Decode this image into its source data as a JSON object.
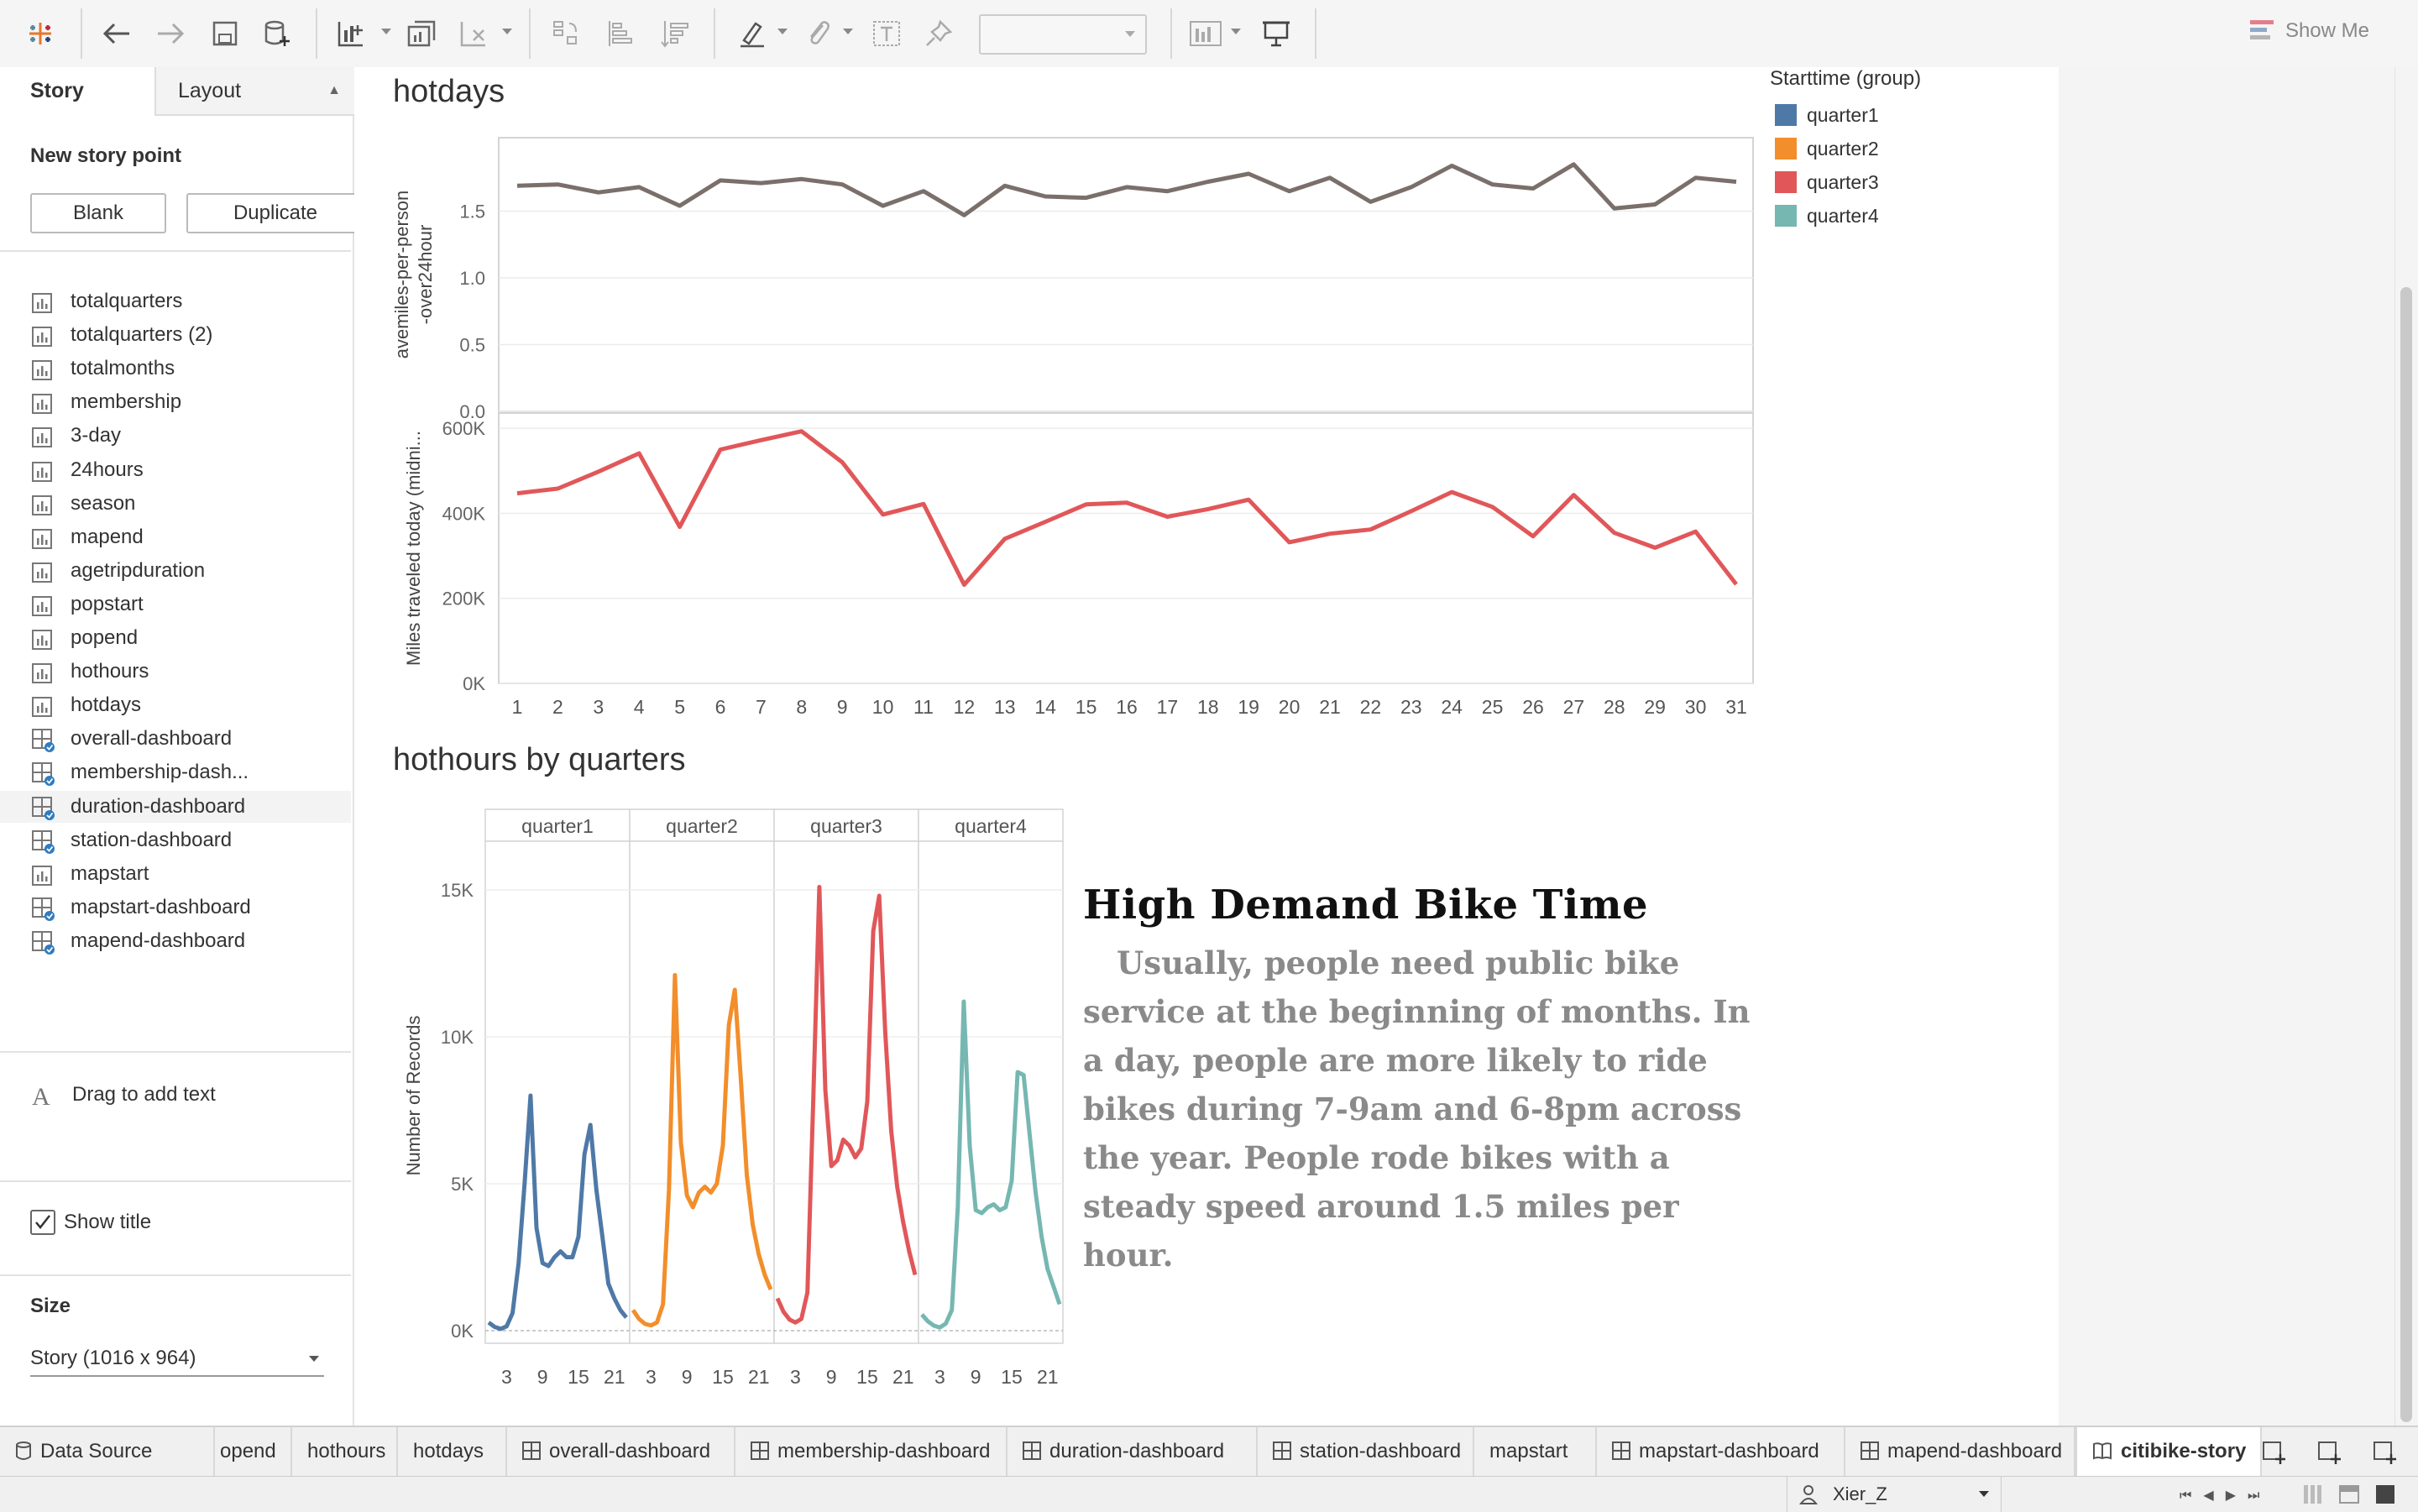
{
  "toolbar": {
    "show_me": "Show Me"
  },
  "left_pane": {
    "tab_story": "Story",
    "tab_layout": "Layout",
    "new_story_point": "New story point",
    "blank_label": "Blank",
    "duplicate_label": "Duplicate",
    "sheets": [
      {
        "label": "totalquarters",
        "icon": "worksheet-icon"
      },
      {
        "label": "totalquarters (2)",
        "icon": "worksheet-icon"
      },
      {
        "label": "totalmonths",
        "icon": "worksheet-icon"
      },
      {
        "label": "membership",
        "icon": "worksheet-icon"
      },
      {
        "label": "3-day",
        "icon": "worksheet-icon"
      },
      {
        "label": "24hours",
        "icon": "worksheet-icon"
      },
      {
        "label": "season",
        "icon": "worksheet-icon"
      },
      {
        "label": "mapend",
        "icon": "worksheet-icon"
      },
      {
        "label": "agetripduration",
        "icon": "worksheet-icon"
      },
      {
        "label": "popstart",
        "icon": "worksheet-icon"
      },
      {
        "label": "popend",
        "icon": "worksheet-icon"
      },
      {
        "label": "hothours",
        "icon": "worksheet-icon"
      },
      {
        "label": "hotdays",
        "icon": "worksheet-icon"
      },
      {
        "label": "overall-dashboard",
        "icon": "dashboard-icon"
      },
      {
        "label": "membership-dash...",
        "icon": "dashboard-icon"
      },
      {
        "label": "duration-dashboard",
        "icon": "dashboard-icon"
      },
      {
        "label": "station-dashboard",
        "icon": "dashboard-icon"
      },
      {
        "label": "mapstart",
        "icon": "worksheet-icon"
      },
      {
        "label": "mapstart-dashboard",
        "icon": "dashboard-icon"
      },
      {
        "label": "mapend-dashboard",
        "icon": "dashboard-icon"
      }
    ],
    "drag_text": "Drag to add text",
    "show_title": "Show title",
    "size_heading": "Size",
    "size_value": "Story (1016 x 964)"
  },
  "hotdays": {
    "title": "hotdays",
    "ylabel_top": "avemiles-per-person-over24hour",
    "ylabel_bottom": "Miles traveled today (midni..."
  },
  "hothours": {
    "title": "hothours by quarters",
    "ylabel": "Number of Records"
  },
  "legend": {
    "title": "Starttime (group)",
    "items": [
      {
        "label": "quarter1",
        "color": "#4e79a7"
      },
      {
        "label": "quarter2",
        "color": "#f28e2b"
      },
      {
        "label": "quarter3",
        "color": "#e15759"
      },
      {
        "label": "quarter4",
        "color": "#76b7b2"
      }
    ]
  },
  "annotation": {
    "heading": "High Demand Bike Time",
    "body": "Usually, people need public bike service at the beginning of months. In a day, people are more likely to ride bikes during 7-9am and 6-8pm across the year. People rode bikes with a steady speed around 1.5 miles per hour."
  },
  "bottom_tabs": [
    {
      "label": "Data Source"
    },
    {
      "label": "opend"
    },
    {
      "label": "hothours"
    },
    {
      "label": "hotdays"
    },
    {
      "label": "overall-dashboard"
    },
    {
      "label": "membership-dashboard"
    },
    {
      "label": "duration-dashboard"
    },
    {
      "label": "station-dashboard"
    },
    {
      "label": "mapstart"
    },
    {
      "label": "mapstart-dashboard"
    },
    {
      "label": "mapend-dashboard"
    },
    {
      "label": "citibike-story"
    }
  ],
  "status": {
    "user": "Xier_Z"
  },
  "chart_data": [
    {
      "type": "line",
      "title": "hotdays",
      "x": [
        1,
        2,
        3,
        4,
        5,
        6,
        7,
        8,
        9,
        10,
        11,
        12,
        13,
        14,
        15,
        16,
        17,
        18,
        19,
        20,
        21,
        22,
        23,
        24,
        25,
        26,
        27,
        28,
        29,
        30,
        31
      ],
      "series": [
        {
          "values": [
            1.69,
            1.7,
            1.64,
            1.68,
            1.54,
            1.73,
            1.71,
            1.74,
            1.7,
            1.54,
            1.65,
            1.47,
            1.69,
            1.61,
            1.6,
            1.68,
            1.65,
            1.72,
            1.78,
            1.65,
            1.75,
            1.57,
            1.68,
            1.84,
            1.7,
            1.67,
            1.85,
            1.52,
            1.55,
            1.75,
            1.72
          ],
          "color": "#7b6f6b"
        }
      ],
      "ylabel": "avemiles-per-person-over24hour",
      "yticks": [
        "0.0",
        "0.5",
        "1.0",
        "1.5"
      ],
      "ylim": [
        0,
        2.0
      ]
    },
    {
      "type": "line",
      "x": [
        1,
        2,
        3,
        4,
        5,
        6,
        7,
        8,
        9,
        10,
        11,
        12,
        13,
        14,
        15,
        16,
        17,
        18,
        19,
        20,
        21,
        22,
        23,
        24,
        25,
        26,
        27,
        28,
        29,
        30,
        31
      ],
      "series": [
        {
          "values": [
            447000,
            458000,
            498000,
            541000,
            368000,
            550000,
            572000,
            593000,
            520000,
            397000,
            422000,
            232000,
            340000,
            380000,
            421000,
            425000,
            392000,
            410000,
            432000,
            332000,
            352000,
            362000,
            405000,
            450000,
            415000,
            346000,
            443000,
            354000,
            319000,
            357000,
            233000
          ],
          "color": "#e15759"
        }
      ],
      "ylabel": "Miles traveled today (midni...",
      "yticks": [
        "0K",
        "200K",
        "400K",
        "600K"
      ],
      "ylim": [
        0,
        620000
      ]
    },
    {
      "type": "line",
      "title": "hothours by quarters",
      "x": [
        0,
        1,
        2,
        3,
        4,
        5,
        6,
        7,
        8,
        9,
        10,
        11,
        12,
        13,
        14,
        15,
        16,
        17,
        18,
        19,
        20,
        21,
        22,
        23
      ],
      "xticks": [
        "3",
        "9",
        "15",
        "21"
      ],
      "ylabel": "Number of Records",
      "yticks": [
        "0K",
        "5K",
        "10K",
        "15K"
      ],
      "ylim": [
        0,
        16000
      ],
      "series": [
        {
          "name": "quarter1",
          "color": "#4e79a7",
          "values": [
            280,
            130,
            60,
            150,
            600,
            2300,
            5000,
            8000,
            3500,
            2300,
            2200,
            2500,
            2700,
            2500,
            2500,
            3200,
            6000,
            7000,
            4800,
            3200,
            1600,
            1100,
            700,
            450
          ]
        },
        {
          "name": "quarter2",
          "color": "#f28e2b",
          "values": [
            700,
            400,
            230,
            180,
            280,
            900,
            4800,
            12100,
            6400,
            4600,
            4200,
            4700,
            4900,
            4700,
            5000,
            6300,
            10400,
            11600,
            8600,
            5300,
            3600,
            2600,
            1900,
            1400
          ]
        },
        {
          "name": "quarter3",
          "color": "#e15759",
          "values": [
            1100,
            650,
            380,
            280,
            400,
            1300,
            8000,
            15100,
            8200,
            5600,
            5800,
            6500,
            6300,
            5900,
            6200,
            7800,
            13600,
            14800,
            10200,
            6800,
            4900,
            3700,
            2700,
            1900
          ]
        },
        {
          "name": "quarter4",
          "color": "#76b7b2",
          "values": [
            550,
            320,
            170,
            110,
            240,
            700,
            4200,
            11200,
            6300,
            4100,
            4000,
            4200,
            4300,
            4100,
            4200,
            5100,
            8800,
            8700,
            6700,
            4700,
            3200,
            2100,
            1500,
            900
          ]
        }
      ]
    }
  ]
}
